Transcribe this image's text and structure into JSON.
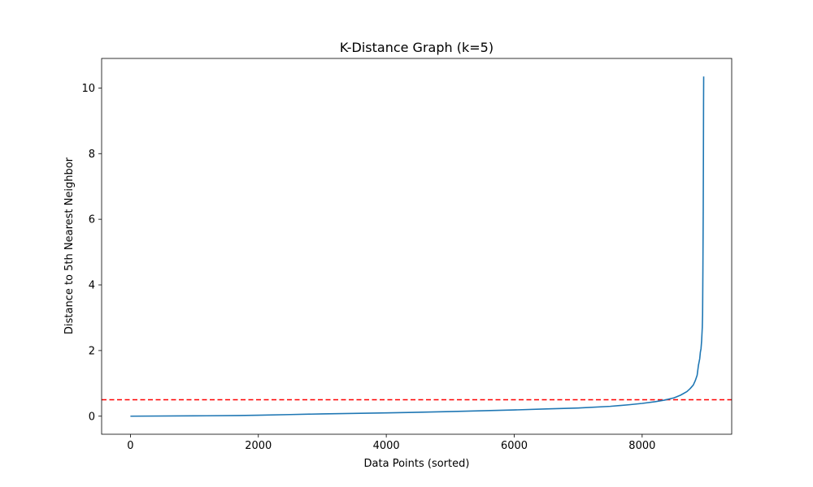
{
  "chart_data": {
    "type": "line",
    "title": "K-Distance Graph (k=5)",
    "xlabel": "Data Points (sorted)",
    "ylabel": "Distance to 5th Nearest Neighbor",
    "xlim": [
      -450,
      9400
    ],
    "ylim": [
      -0.55,
      10.9
    ],
    "xticks": [
      0,
      2000,
      4000,
      6000,
      8000
    ],
    "yticks": [
      0,
      2,
      4,
      6,
      8,
      10
    ],
    "grid": false,
    "series": [
      {
        "color": "#1f77b4",
        "x": [
          0,
          1000,
          1700,
          2000,
          2500,
          3000,
          4000,
          5000,
          6000,
          6500,
          7000,
          7500,
          7800,
          8000,
          8200,
          8350,
          8500,
          8600,
          8700,
          8750,
          8800,
          8830,
          8860,
          8880,
          8900,
          8910,
          8920,
          8930,
          8940,
          8945,
          8950,
          8955,
          8958,
          8960,
          8962
        ],
        "y": [
          0,
          0.01,
          0.02,
          0.03,
          0.05,
          0.07,
          0.1,
          0.14,
          0.19,
          0.22,
          0.25,
          0.3,
          0.35,
          0.39,
          0.44,
          0.49,
          0.56,
          0.64,
          0.75,
          0.84,
          0.95,
          1.08,
          1.25,
          1.55,
          1.75,
          1.95,
          2.05,
          2.3,
          2.7,
          3.1,
          4.5,
          6.3,
          8.0,
          9.5,
          10.35
        ]
      }
    ],
    "reference_lines": [
      {
        "orientation": "horizontal",
        "y": 0.5,
        "color": "#ff0000",
        "style": "dashed"
      }
    ]
  }
}
